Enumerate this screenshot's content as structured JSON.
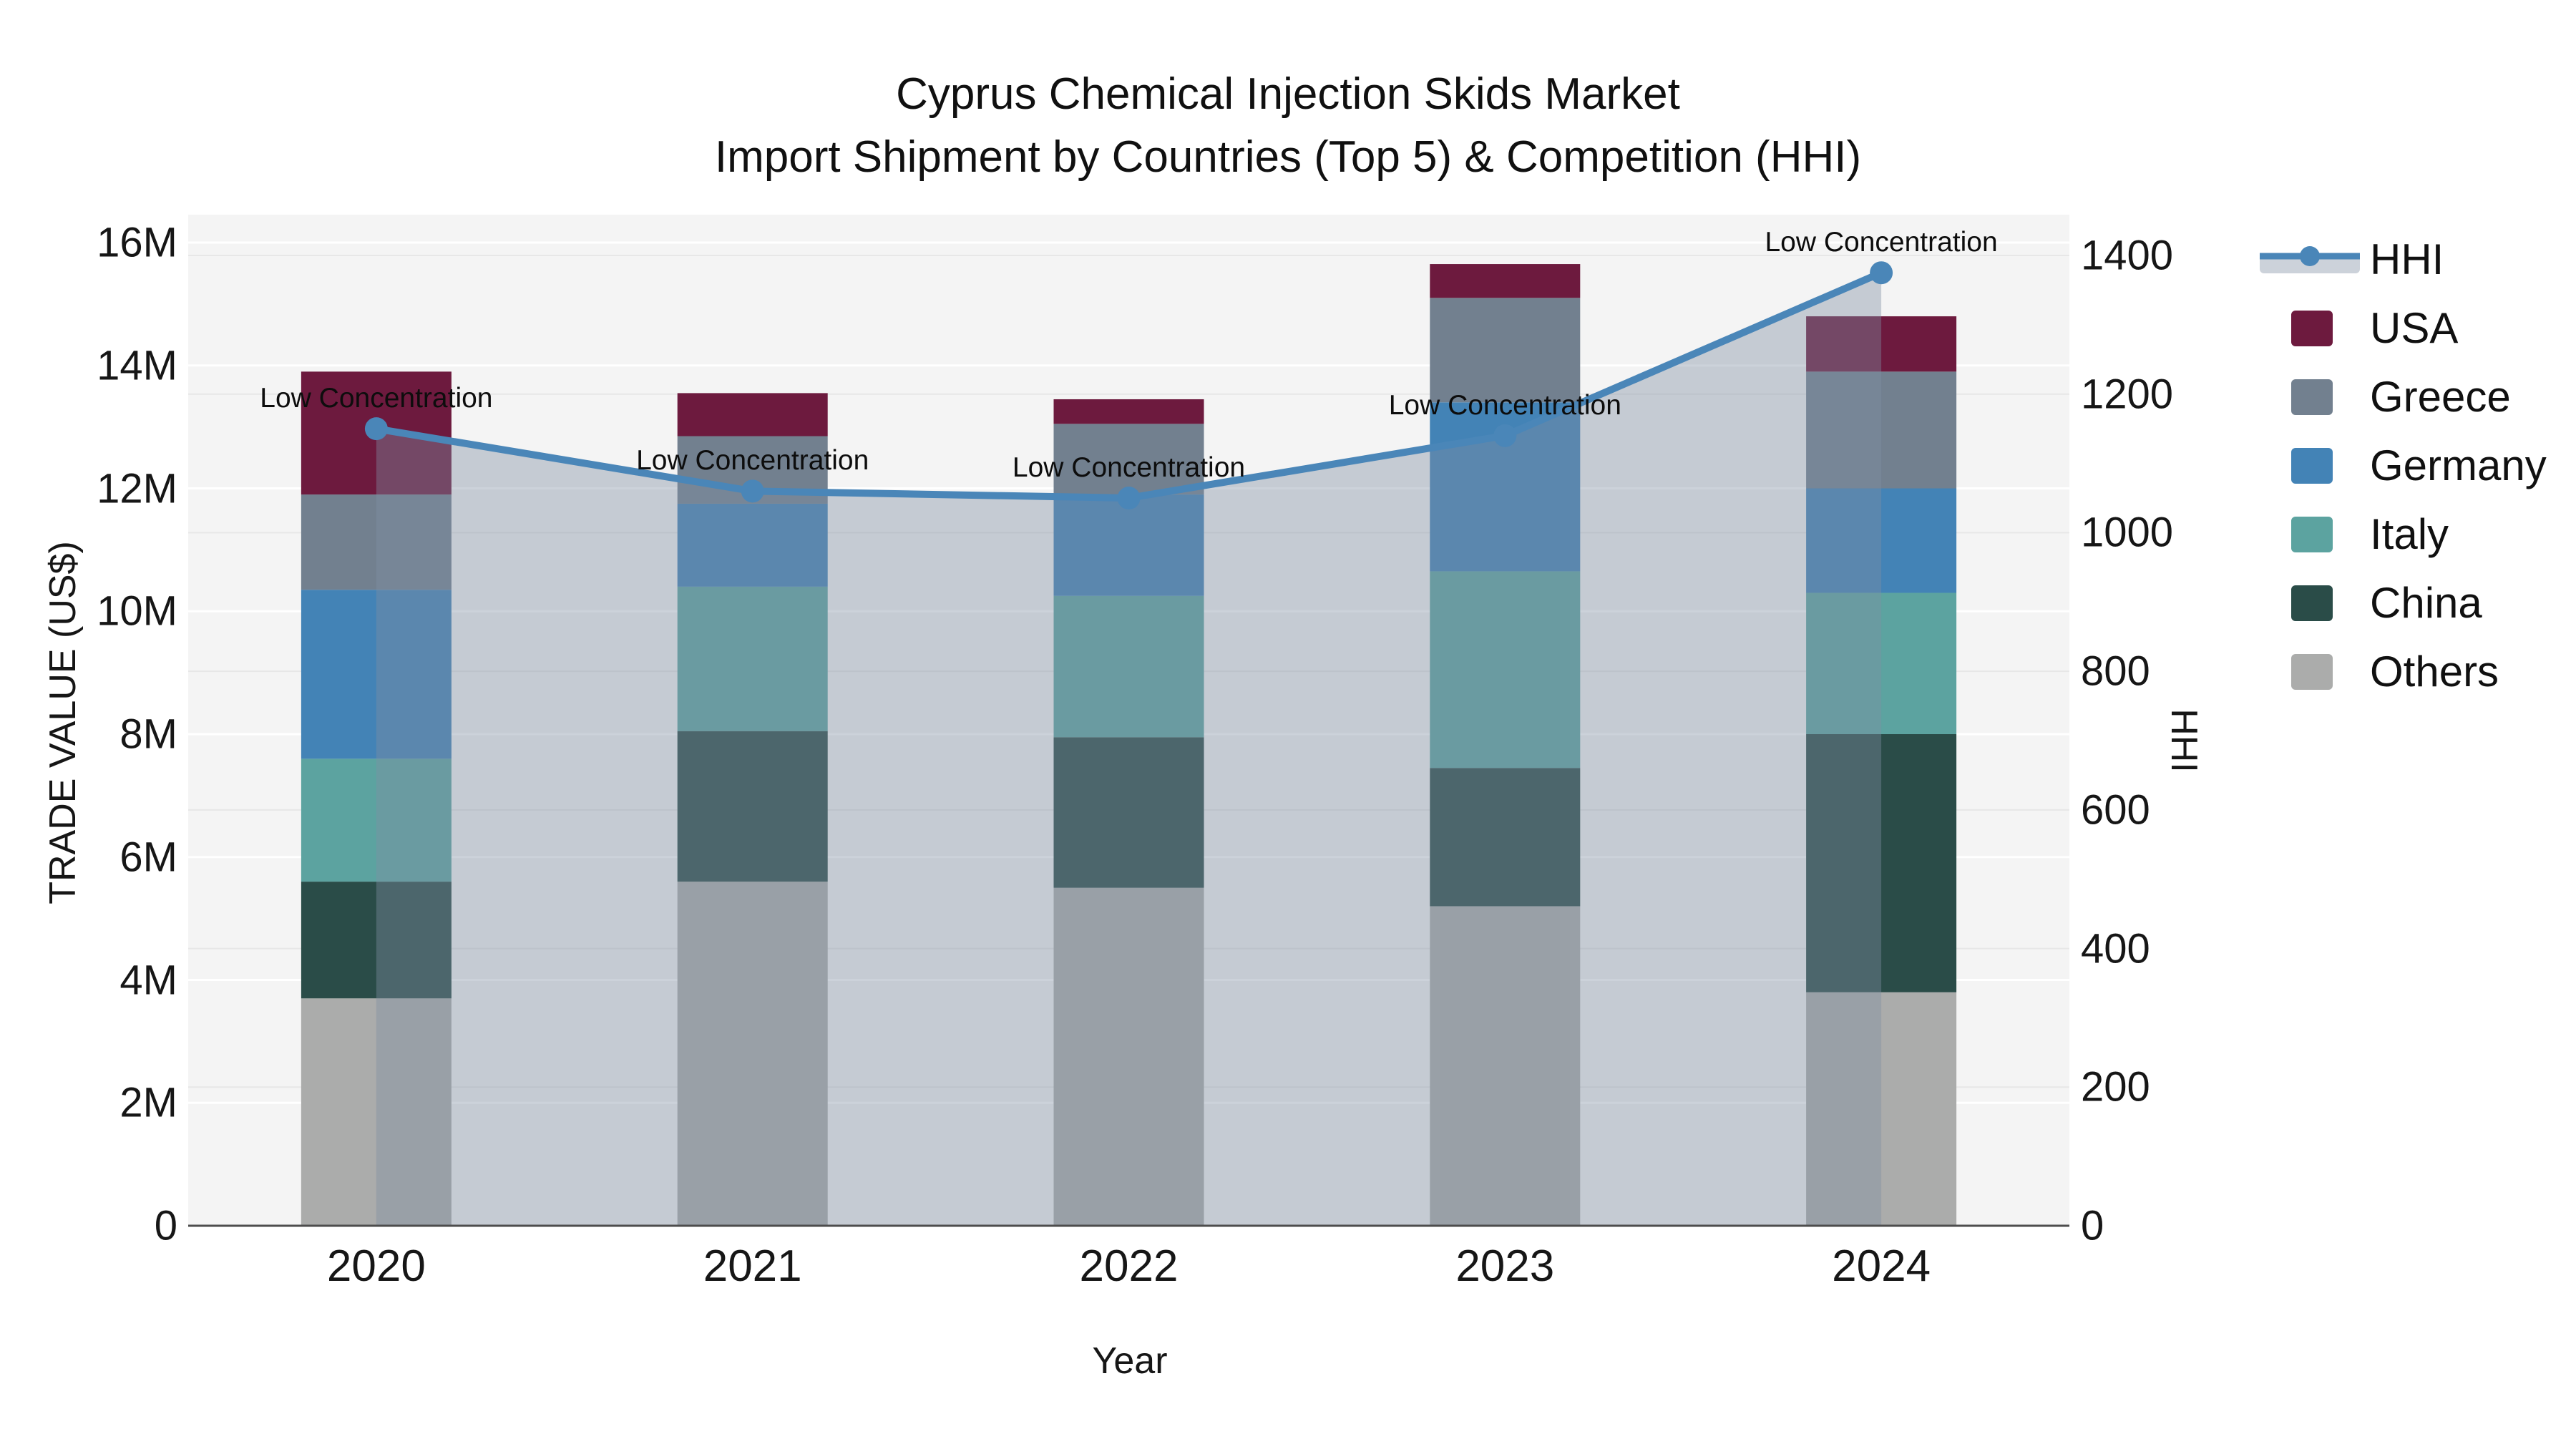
{
  "title": {
    "line1": "Cyprus Chemical Injection Skids Market",
    "line2": "Import Shipment by Countries (Top 5) & Competition (HHI)"
  },
  "chart_data": {
    "type": "combo-stacked-bar-line",
    "categories": [
      "2020",
      "2021",
      "2022",
      "2023",
      "2024"
    ],
    "bar_unit": "USD millions",
    "bar_series": [
      {
        "name": "Others",
        "color": "#ABACAB",
        "values": [
          3.7,
          5.6,
          5.5,
          5.2,
          3.8
        ]
      },
      {
        "name": "China",
        "color": "#2A4C48",
        "values": [
          1.9,
          2.45,
          2.45,
          2.25,
          4.2
        ]
      },
      {
        "name": "Italy",
        "color": "#5CA3A0",
        "values": [
          2.0,
          2.35,
          2.3,
          3.2,
          2.3
        ]
      },
      {
        "name": "Germany",
        "color": "#4383B6",
        "values": [
          2.75,
          1.35,
          1.65,
          2.75,
          1.7
        ]
      },
      {
        "name": "Greece",
        "color": "#72808F",
        "values": [
          1.55,
          1.1,
          1.15,
          1.7,
          1.9
        ]
      },
      {
        "name": "USA",
        "color": "#6D1A3E",
        "values": [
          2.0,
          0.7,
          0.4,
          0.55,
          0.9
        ]
      }
    ],
    "bar_totals": [
      13.9,
      13.55,
      13.45,
      15.65,
      14.8
    ],
    "line_series": {
      "name": "HHI",
      "color": "#4A86B8",
      "area_color": "rgba(127,142,163,0.40)",
      "values": [
        1150,
        1060,
        1050,
        1140,
        1375
      ]
    },
    "annotations": [
      {
        "text": "Low Concentration",
        "category": "2020"
      },
      {
        "text": "Low Concentration",
        "category": "2021"
      },
      {
        "text": "Low Concentration",
        "category": "2022"
      },
      {
        "text": "Low Concentration",
        "category": "2023"
      },
      {
        "text": "Low Concentration",
        "category": "2024"
      }
    ],
    "axes": {
      "x": {
        "label": "Year"
      },
      "left": {
        "label": "TRADE VALUE (US$)",
        "min": 0,
        "max": 16,
        "tick_values": [
          0,
          2,
          4,
          6,
          8,
          10,
          12,
          14,
          16
        ],
        "tick_labels": [
          "0",
          "2M",
          "4M",
          "6M",
          "8M",
          "10M",
          "12M",
          "14M",
          "16M"
        ]
      },
      "right": {
        "label": "HHI",
        "min": 0,
        "max": 1400,
        "tick_values": [
          0,
          200,
          400,
          600,
          800,
          1000,
          1200,
          1400
        ],
        "tick_labels": [
          "0",
          "200",
          "400",
          "600",
          "800",
          "1000",
          "1200",
          "1400"
        ]
      }
    },
    "legend": [
      "HHI",
      "USA",
      "Greece",
      "Germany",
      "Italy",
      "China",
      "Others"
    ],
    "style": {
      "plot_bg": "#F4F4F4",
      "grid_left_color": "#FFFFFF",
      "grid_right_color": "#E7E7E7",
      "axis_line_color": "#4D4D4D"
    }
  }
}
